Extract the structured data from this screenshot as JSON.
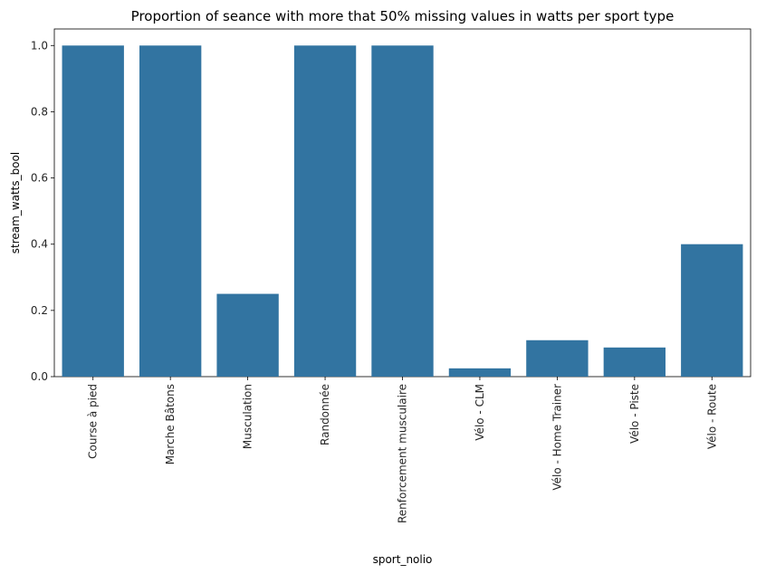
{
  "chart_data": {
    "type": "bar",
    "title": "Proportion of seance with more that 50% missing values in watts per sport type",
    "xlabel": "sport_nolio",
    "ylabel": "stream_watts_bool",
    "categories": [
      "Course à pied",
      "Marche Bâtons",
      "Musculation",
      "Randonnée",
      "Renforcement musculaire",
      "Vélo - CLM",
      "Vélo - Home Trainer",
      "Vélo - Piste",
      "Vélo - Route"
    ],
    "values": [
      1.0,
      1.0,
      0.25,
      1.0,
      1.0,
      0.025,
      0.11,
      0.088,
      0.4
    ],
    "ylim": [
      0,
      1.05
    ],
    "yticks": [
      0.0,
      0.2,
      0.4,
      0.6,
      0.8,
      1.0
    ],
    "ytick_labels": [
      "0.0",
      "0.2",
      "0.4",
      "0.6",
      "0.8",
      "1.0"
    ],
    "bar_color": "#3274a1",
    "grid": false,
    "legend": "none"
  }
}
